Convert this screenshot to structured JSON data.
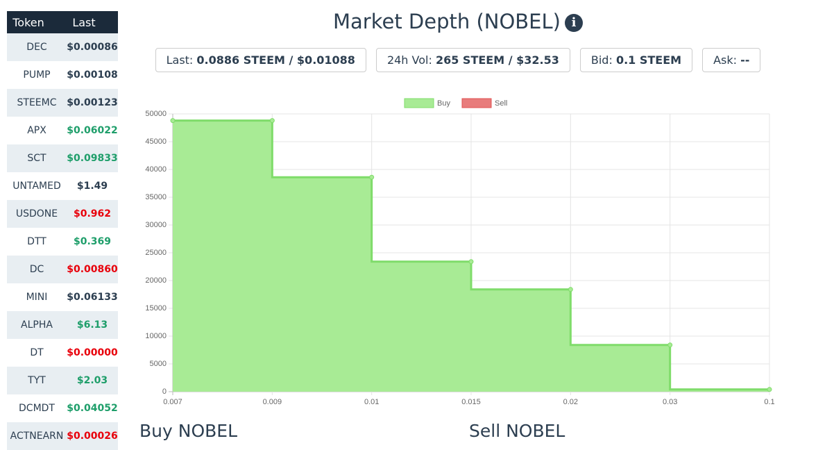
{
  "sidebar": {
    "headers": [
      "Token",
      "Last"
    ],
    "rows": [
      {
        "token": "DEC",
        "last": "$0.00086",
        "color": "#2c3e50"
      },
      {
        "token": "PUMP",
        "last": "$0.00108",
        "color": "#2c3e50"
      },
      {
        "token": "STEEMC",
        "last": "$0.00123",
        "color": "#2c3e50"
      },
      {
        "token": "APX",
        "last": "$0.06022",
        "color": "#1e9e6a"
      },
      {
        "token": "SCT",
        "last": "$0.09833",
        "color": "#1e9e6a"
      },
      {
        "token": "UNTAMED",
        "last": "$1.49",
        "color": "#2c3e50"
      },
      {
        "token": "USDONE",
        "last": "$0.962",
        "color": "#e8000b"
      },
      {
        "token": "DTT",
        "last": "$0.369",
        "color": "#1e9e6a"
      },
      {
        "token": "DC",
        "last": "$0.00860",
        "color": "#e8000b"
      },
      {
        "token": "MINI",
        "last": "$0.06133",
        "color": "#2c3e50"
      },
      {
        "token": "ALPHA",
        "last": "$6.13",
        "color": "#1e9e6a"
      },
      {
        "token": "DT",
        "last": "$0.00000",
        "color": "#e8000b"
      },
      {
        "token": "TYT",
        "last": "$2.03",
        "color": "#1e9e6a"
      },
      {
        "token": "DCMDT",
        "last": "$0.04052",
        "color": "#1e9e6a"
      },
      {
        "token": "ACTNEARN",
        "last": "$0.00026",
        "color": "#e8000b"
      }
    ]
  },
  "header": {
    "title": "Market Depth (NOBEL)",
    "stats": [
      {
        "label": "Last:",
        "value": "0.0886 STEEM / $0.01088"
      },
      {
        "label": "24h Vol:",
        "value": "265 STEEM / $32.53"
      },
      {
        "label": "Bid:",
        "value": "0.1 STEEM"
      },
      {
        "label": "Ask:",
        "value": "--"
      }
    ]
  },
  "chart_data": {
    "type": "step-area",
    "categories": [
      "0.007",
      "0.009",
      "0.01",
      "0.015",
      "0.02",
      "0.03",
      "0.1"
    ],
    "series": [
      {
        "name": "Buy",
        "color": "#a8eb95",
        "border": "#7fdc6a",
        "values": [
          48800,
          48800,
          38600,
          23400,
          18400,
          8400,
          400
        ]
      },
      {
        "name": "Sell",
        "color": "#e87c7c",
        "border": "#e05050",
        "values": [
          null,
          null,
          null,
          null,
          null,
          null,
          null
        ]
      }
    ],
    "ylim": [
      0,
      50000
    ],
    "yticks": [
      0,
      5000,
      10000,
      15000,
      20000,
      25000,
      30000,
      35000,
      40000,
      45000,
      50000
    ],
    "grid": true,
    "legend": "top"
  },
  "sections": [
    "Buy NOBEL",
    "Sell NOBEL"
  ]
}
